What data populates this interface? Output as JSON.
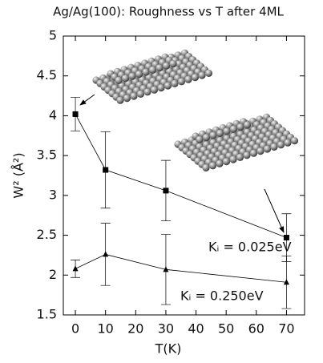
{
  "chart_data": {
    "type": "line",
    "title": "Ag/Ag(100): Roughness vs T after 4ML",
    "x_label": "T(K)",
    "y_label": "W² (Å²)",
    "x": [
      0,
      10,
      30,
      70
    ],
    "series": [
      {
        "color": "#000000",
        "marker": "square",
        "values": [
          4.02,
          3.32,
          3.06,
          2.47
        ],
        "errors": [
          0.21,
          0.48,
          0.38,
          0.3
        ]
      },
      {
        "color": "#000000",
        "marker": "triangle",
        "values": [
          2.08,
          2.26,
          2.07,
          1.91
        ],
        "errors": [
          0.11,
          0.39,
          0.44,
          0.33
        ]
      }
    ],
    "annotations": [
      "Kᵢ = 0.025eV",
      "Kᵢ = 0.250eV"
    ],
    "xlim": [
      -4,
      76
    ],
    "xticks": [
      0,
      10,
      20,
      30,
      40,
      50,
      60,
      70
    ],
    "ylim": [
      1.5,
      5
    ],
    "yticks": [
      1.5,
      2,
      2.5,
      3,
      3.5,
      4,
      4.5,
      5
    ]
  }
}
